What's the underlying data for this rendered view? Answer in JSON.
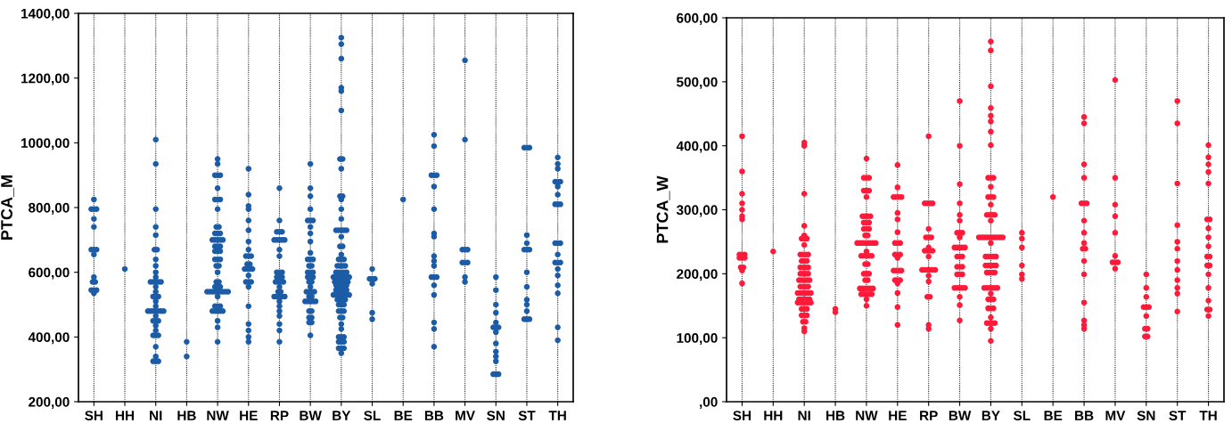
{
  "chart_data": [
    {
      "type": "scatter",
      "ylabel": "PTCA_M",
      "categories": [
        "SH",
        "HH",
        "NI",
        "HB",
        "NW",
        "HE",
        "RP",
        "BW",
        "BY",
        "SL",
        "BE",
        "BB",
        "MV",
        "SN",
        "ST",
        "TH"
      ],
      "ylim": [
        200,
        1400
      ],
      "yticks": [
        {
          "value": 200,
          "label": "200,00"
        },
        {
          "value": 400,
          "label": "400,00"
        },
        {
          "value": 600,
          "label": "600,00"
        },
        {
          "value": 800,
          "label": "800,00"
        },
        {
          "value": 1000,
          "label": "1000,00"
        },
        {
          "value": 1200,
          "label": "1200,00"
        },
        {
          "value": 1400,
          "label": "1400,00"
        }
      ],
      "grid": "x",
      "marker": "circle",
      "series": [
        {
          "color": "#1c5ca6",
          "x": [
            "SH",
            "SH",
            "SH",
            "SH",
            "SH",
            "SH",
            "SH",
            "SH",
            "SH",
            "SH",
            "SH",
            "SH",
            "SH",
            "SH",
            "SH",
            "SH",
            "SH",
            "HH",
            "NI",
            "NI",
            "NI",
            "NI",
            "NI",
            "NI",
            "NI",
            "NI",
            "NI",
            "NI",
            "NI",
            "NI",
            "NI",
            "NI",
            "NI",
            "NI",
            "NI",
            "NI",
            "NI",
            "NI",
            "NI",
            "NI",
            "NI",
            "NI",
            "NI",
            "NI",
            "NI",
            "NI",
            "NI",
            "NI",
            "NI",
            "NI",
            "NI",
            "NI",
            "NI",
            "NI",
            "NI",
            "NI",
            "NI",
            "NI",
            "NI",
            "NI",
            "NI",
            "NI",
            "HB",
            "HB",
            "NW",
            "NW",
            "NW",
            "NW",
            "NW",
            "NW",
            "NW",
            "NW",
            "NW",
            "NW",
            "NW",
            "NW",
            "NW",
            "NW",
            "NW",
            "NW",
            "NW",
            "NW",
            "NW",
            "NW",
            "NW",
            "NW",
            "NW",
            "NW",
            "NW",
            "NW",
            "NW",
            "NW",
            "NW",
            "NW",
            "NW",
            "NW",
            "NW",
            "NW",
            "NW",
            "NW",
            "NW",
            "NW",
            "NW",
            "NW",
            "NW",
            "NW",
            "NW",
            "NW",
            "NW",
            "NW",
            "NW",
            "NW",
            "NW",
            "NW",
            "NW",
            "NW",
            "NW",
            "NW",
            "NW",
            "NW",
            "NW",
            "NW",
            "HE",
            "HE",
            "HE",
            "HE",
            "HE",
            "HE",
            "HE",
            "HE",
            "HE",
            "HE",
            "HE",
            "HE",
            "HE",
            "HE",
            "HE",
            "HE",
            "HE",
            "HE",
            "HE",
            "HE",
            "HE",
            "HE",
            "HE",
            "HE",
            "HE",
            "HE",
            "HE",
            "RP",
            "RP",
            "RP",
            "RP",
            "RP",
            "RP",
            "RP",
            "RP",
            "RP",
            "RP",
            "RP",
            "RP",
            "RP",
            "RP",
            "RP",
            "RP",
            "RP",
            "RP",
            "RP",
            "RP",
            "RP",
            "RP",
            "RP",
            "RP",
            "RP",
            "RP",
            "RP",
            "RP",
            "RP",
            "RP",
            "RP",
            "RP",
            "RP",
            "RP",
            "RP",
            "RP",
            "RP",
            "BW",
            "BW",
            "BW",
            "BW",
            "BW",
            "BW",
            "BW",
            "BW",
            "BW",
            "BW",
            "BW",
            "BW",
            "BW",
            "BW",
            "BW",
            "BW",
            "BW",
            "BW",
            "BW",
            "BW",
            "BW",
            "BW",
            "BW",
            "BW",
            "BW",
            "BW",
            "BW",
            "BW",
            "BW",
            "BW",
            "BW",
            "BW",
            "BW",
            "BW",
            "BW",
            "BW",
            "BW",
            "BW",
            "BW",
            "BW",
            "BW",
            "BW",
            "BW",
            "BY",
            "BY",
            "BY",
            "BY",
            "BY",
            "BY",
            "BY",
            "BY",
            "BY",
            "BY",
            "BY",
            "BY",
            "BY",
            "BY",
            "BY",
            "BY",
            "BY",
            "BY",
            "BY",
            "BY",
            "BY",
            "BY",
            "BY",
            "BY",
            "BY",
            "BY",
            "BY",
            "BY",
            "BY",
            "BY",
            "BY",
            "BY",
            "BY",
            "BY",
            "BY",
            "BY",
            "BY",
            "BY",
            "BY",
            "BY",
            "BY",
            "BY",
            "BY",
            "BY",
            "BY",
            "BY",
            "BY",
            "BY",
            "BY",
            "BY",
            "BY",
            "BY",
            "BY",
            "BY",
            "BY",
            "BY",
            "BY",
            "BY",
            "BY",
            "BY",
            "BY",
            "BY",
            "BY",
            "BY",
            "BY",
            "BY",
            "BY",
            "BY",
            "BY",
            "BY",
            "BY",
            "BY",
            "BY",
            "BY",
            "BY",
            "BY",
            "BY",
            "BY",
            "BY",
            "BY",
            "BY",
            "BY",
            "BY",
            "BY",
            "BY",
            "BY",
            "BY",
            "BY",
            "BY",
            "SL",
            "SL",
            "SL",
            "SL",
            "SL",
            "SL",
            "SL",
            "BE",
            "BB",
            "BB",
            "BB",
            "BB",
            "BB",
            "BB",
            "BB",
            "BB",
            "BB",
            "BB",
            "BB",
            "BB",
            "BB",
            "BB",
            "BB",
            "BB",
            "BB",
            "BB",
            "BB",
            "BB",
            "MV",
            "MV",
            "MV",
            "MV",
            "MV",
            "MV",
            "MV",
            "MV",
            "MV",
            "MV",
            "SN",
            "SN",
            "SN",
            "SN",
            "SN",
            "SN",
            "SN",
            "SN",
            "SN",
            "SN",
            "SN",
            "SN",
            "SN",
            "SN",
            "SN",
            "SN",
            "ST",
            "ST",
            "ST",
            "ST",
            "ST",
            "ST",
            "ST",
            "ST",
            "ST",
            "ST",
            "ST",
            "ST",
            "ST",
            "ST",
            "ST",
            "ST",
            "TH",
            "TH",
            "TH",
            "TH",
            "TH",
            "TH",
            "TH",
            "TH",
            "TH",
            "TH",
            "TH",
            "TH",
            "TH",
            "TH",
            "TH",
            "TH",
            "TH",
            "TH",
            "TH",
            "TH",
            "TH",
            "TH",
            "TH",
            "TH"
          ],
          "values": [
            825,
            795,
            795,
            795,
            765,
            740,
            670,
            670,
            670,
            655,
            585,
            570,
            570,
            545,
            545,
            545,
            535,
            610,
            1010,
            935,
            795,
            740,
            715,
            670,
            670,
            640,
            620,
            600,
            585,
            570,
            570,
            570,
            570,
            570,
            555,
            540,
            525,
            525,
            525,
            510,
            495,
            480,
            480,
            480,
            480,
            480,
            480,
            480,
            465,
            450,
            450,
            450,
            435,
            420,
            405,
            405,
            405,
            370,
            340,
            325,
            325,
            325,
            385,
            340,
            950,
            935,
            900,
            900,
            900,
            860,
            825,
            825,
            825,
            795,
            740,
            740,
            720,
            720,
            720,
            700,
            700,
            700,
            700,
            700,
            680,
            680,
            680,
            665,
            665,
            665,
            640,
            640,
            640,
            620,
            620,
            600,
            570,
            570,
            555,
            555,
            555,
            540,
            540,
            540,
            540,
            540,
            540,
            540,
            540,
            540,
            525,
            495,
            495,
            495,
            480,
            480,
            480,
            480,
            480,
            450,
            430,
            385,
            920,
            840,
            805,
            795,
            760,
            730,
            695,
            670,
            650,
            650,
            650,
            625,
            625,
            610,
            610,
            610,
            610,
            590,
            570,
            570,
            570,
            555,
            495,
            440,
            420,
            400,
            385,
            860,
            760,
            725,
            725,
            725,
            700,
            700,
            700,
            700,
            700,
            670,
            650,
            600,
            600,
            600,
            585,
            585,
            585,
            570,
            570,
            570,
            570,
            555,
            540,
            540,
            525,
            525,
            525,
            525,
            525,
            510,
            495,
            480,
            465,
            440,
            420,
            385,
            935,
            860,
            835,
            795,
            760,
            760,
            760,
            740,
            720,
            695,
            660,
            640,
            640,
            640,
            620,
            620,
            600,
            600,
            600,
            585,
            585,
            585,
            570,
            570,
            555,
            540,
            540,
            540,
            540,
            525,
            525,
            510,
            510,
            510,
            510,
            510,
            480,
            480,
            460,
            460,
            445,
            445,
            405,
            1325,
            1305,
            1260,
            1170,
            1160,
            1100,
            950,
            950,
            920,
            835,
            835,
            825,
            795,
            765,
            730,
            730,
            730,
            730,
            730,
            710,
            680,
            680,
            655,
            640,
            640,
            640,
            620,
            620,
            620,
            620,
            600,
            600,
            600,
            600,
            600,
            585,
            585,
            585,
            585,
            585,
            585,
            585,
            570,
            570,
            570,
            570,
            570,
            570,
            560,
            560,
            560,
            560,
            560,
            545,
            545,
            545,
            545,
            545,
            530,
            530,
            530,
            530,
            530,
            530,
            530,
            515,
            515,
            515,
            515,
            500,
            500,
            500,
            480,
            480,
            480,
            460,
            460,
            440,
            425,
            400,
            400,
            400,
            385,
            385,
            385,
            365,
            365,
            365,
            350,
            610,
            580,
            580,
            580,
            565,
            475,
            455,
            825,
            1025,
            990,
            900,
            900,
            900,
            865,
            795,
            720,
            710,
            650,
            635,
            620,
            585,
            585,
            585,
            560,
            530,
            445,
            425,
            370,
            1255,
            1010,
            670,
            670,
            670,
            630,
            630,
            630,
            585,
            570,
            585,
            545,
            500,
            475,
            445,
            430,
            430,
            430,
            415,
            380,
            355,
            340,
            325,
            285,
            285,
            285,
            985,
            985,
            985,
            715,
            690,
            670,
            670,
            670,
            600,
            555,
            515,
            500,
            480,
            455,
            455,
            455,
            955,
            935,
            920,
            880,
            880,
            880,
            865,
            840,
            810,
            810,
            810,
            690,
            690,
            690,
            655,
            630,
            630,
            630,
            610,
            590,
            560,
            535,
            430,
            390
          ]
        }
      ]
    },
    {
      "type": "scatter",
      "ylabel": "PTCA_W",
      "categories": [
        "SH",
        "HH",
        "NI",
        "HB",
        "NW",
        "HE",
        "RP",
        "BW",
        "BY",
        "SL",
        "BE",
        "BB",
        "MV",
        "SN",
        "ST",
        "TH"
      ],
      "ylim": [
        0,
        600
      ],
      "yticks": [
        {
          "value": 0,
          "label": ",00"
        },
        {
          "value": 100,
          "label": "100,00"
        },
        {
          "value": 200,
          "label": "200,00"
        },
        {
          "value": 300,
          "label": "300,00"
        },
        {
          "value": 400,
          "label": "400,00"
        },
        {
          "value": 500,
          "label": "500,00"
        },
        {
          "value": 600,
          "label": "600,00"
        }
      ],
      "grid": "x",
      "marker": "circle",
      "series": [
        {
          "color": "#ff1a3a",
          "x": [
            "SH",
            "SH",
            "SH",
            "SH",
            "SH",
            "SH",
            "SH",
            "SH",
            "SH",
            "SH",
            "SH",
            "SH",
            "SH",
            "SH",
            "SH",
            "SH",
            "SH",
            "HH",
            "NI",
            "NI",
            "NI",
            "NI",
            "NI",
            "NI",
            "NI",
            "NI",
            "NI",
            "NI",
            "NI",
            "NI",
            "NI",
            "NI",
            "NI",
            "NI",
            "NI",
            "NI",
            "NI",
            "NI",
            "NI",
            "NI",
            "NI",
            "NI",
            "NI",
            "NI",
            "NI",
            "NI",
            "NI",
            "NI",
            "NI",
            "NI",
            "NI",
            "NI",
            "NI",
            "NI",
            "NI",
            "NI",
            "NI",
            "NI",
            "NI",
            "NI",
            "NI",
            "NI",
            "NI",
            "NI",
            "NI",
            "NI",
            "NI",
            "NI",
            "NI",
            "NI",
            "NI",
            "NI",
            "NI",
            "NI",
            "NI",
            "NI",
            "NI",
            "NI",
            "HB",
            "HB",
            "NW",
            "NW",
            "NW",
            "NW",
            "NW",
            "NW",
            "NW",
            "NW",
            "NW",
            "NW",
            "NW",
            "NW",
            "NW",
            "NW",
            "NW",
            "NW",
            "NW",
            "NW",
            "NW",
            "NW",
            "NW",
            "NW",
            "NW",
            "NW",
            "NW",
            "NW",
            "NW",
            "NW",
            "NW",
            "NW",
            "NW",
            "NW",
            "NW",
            "NW",
            "NW",
            "NW",
            "NW",
            "NW",
            "NW",
            "NW",
            "NW",
            "NW",
            "NW",
            "NW",
            "NW",
            "NW",
            "NW",
            "NW",
            "NW",
            "NW",
            "NW",
            "NW",
            "NW",
            "NW",
            "HE",
            "HE",
            "HE",
            "HE",
            "HE",
            "HE",
            "HE",
            "HE",
            "HE",
            "HE",
            "HE",
            "HE",
            "HE",
            "HE",
            "HE",
            "HE",
            "HE",
            "HE",
            "HE",
            "HE",
            "HE",
            "HE",
            "HE",
            "HE",
            "HE",
            "HE",
            "HE",
            "RP",
            "RP",
            "RP",
            "RP",
            "RP",
            "RP",
            "RP",
            "RP",
            "RP",
            "RP",
            "RP",
            "RP",
            "RP",
            "RP",
            "RP",
            "RP",
            "RP",
            "RP",
            "RP",
            "RP",
            "RP",
            "RP",
            "RP",
            "RP",
            "RP",
            "RP",
            "RP",
            "BW",
            "BW",
            "BW",
            "BW",
            "BW",
            "BW",
            "BW",
            "BW",
            "BW",
            "BW",
            "BW",
            "BW",
            "BW",
            "BW",
            "BW",
            "BW",
            "BW",
            "BW",
            "BW",
            "BW",
            "BW",
            "BW",
            "BW",
            "BW",
            "BW",
            "BW",
            "BW",
            "BW",
            "BW",
            "BW",
            "BW",
            "BW",
            "BY",
            "BY",
            "BY",
            "BY",
            "BY",
            "BY",
            "BY",
            "BY",
            "BY",
            "BY",
            "BY",
            "BY",
            "BY",
            "BY",
            "BY",
            "BY",
            "BY",
            "BY",
            "BY",
            "BY",
            "BY",
            "BY",
            "BY",
            "BY",
            "BY",
            "BY",
            "BY",
            "BY",
            "BY",
            "BY",
            "BY",
            "BY",
            "BY",
            "BY",
            "BY",
            "BY",
            "BY",
            "BY",
            "BY",
            "BY",
            "BY",
            "BY",
            "BY",
            "BY",
            "BY",
            "BY",
            "BY",
            "BY",
            "BY",
            "BY",
            "BY",
            "BY",
            "BY",
            "BY",
            "BY",
            "BY",
            "BY",
            "BY",
            "BY",
            "BY",
            "BY",
            "BY",
            "BY",
            "BY",
            "BY",
            "BY",
            "SL",
            "SL",
            "SL",
            "SL",
            "SL",
            "SL",
            "BE",
            "BB",
            "BB",
            "BB",
            "BB",
            "BB",
            "BB",
            "BB",
            "BB",
            "BB",
            "BB",
            "BB",
            "BB",
            "BB",
            "BB",
            "BB",
            "BB",
            "BB",
            "BB",
            "MV",
            "MV",
            "MV",
            "MV",
            "MV",
            "MV",
            "MV",
            "MV",
            "MV",
            "MV",
            "SN",
            "SN",
            "SN",
            "SN",
            "SN",
            "SN",
            "SN",
            "SN",
            "SN",
            "SN",
            "SN",
            "ST",
            "ST",
            "ST",
            "ST",
            "ST",
            "ST",
            "ST",
            "ST",
            "ST",
            "ST",
            "ST",
            "ST",
            "TH",
            "TH",
            "TH",
            "TH",
            "TH",
            "TH",
            "TH",
            "TH",
            "TH",
            "TH",
            "TH",
            "TH",
            "TH",
            "TH",
            "TH",
            "TH",
            "TH",
            "TH",
            "TH",
            "TH"
          ],
          "values": [
            415,
            360,
            325,
            310,
            300,
            290,
            285,
            230,
            230,
            230,
            225,
            225,
            225,
            210,
            210,
            205,
            185,
            235,
            405,
            400,
            325,
            275,
            260,
            255,
            255,
            255,
            245,
            230,
            230,
            230,
            230,
            220,
            220,
            220,
            210,
            210,
            210,
            210,
            200,
            200,
            200,
            200,
            190,
            190,
            190,
            190,
            190,
            180,
            180,
            180,
            180,
            170,
            170,
            170,
            170,
            170,
            170,
            160,
            160,
            160,
            160,
            160,
            155,
            155,
            155,
            155,
            155,
            155,
            145,
            145,
            145,
            135,
            135,
            135,
            125,
            125,
            115,
            110,
            145,
            140,
            380,
            350,
            350,
            350,
            330,
            330,
            330,
            320,
            290,
            290,
            290,
            290,
            280,
            280,
            280,
            270,
            270,
            270,
            260,
            260,
            248,
            248,
            248,
            248,
            248,
            248,
            248,
            248,
            235,
            228,
            228,
            228,
            228,
            228,
            215,
            215,
            200,
            200,
            200,
            190,
            190,
            177,
            177,
            177,
            177,
            177,
            177,
            168,
            168,
            168,
            168,
            168,
            160,
            150,
            370,
            335,
            320,
            320,
            320,
            320,
            295,
            285,
            265,
            248,
            248,
            248,
            230,
            230,
            230,
            225,
            205,
            205,
            205,
            205,
            190,
            190,
            190,
            185,
            170,
            148,
            120,
            415,
            310,
            310,
            310,
            310,
            270,
            257,
            257,
            257,
            241,
            236,
            236,
            236,
            236,
            227,
            206,
            206,
            206,
            206,
            206,
            206,
            197,
            188,
            164,
            164,
            120,
            114,
            470,
            400,
            340,
            310,
            292,
            283,
            264,
            264,
            264,
            257,
            241,
            241,
            241,
            241,
            241,
            227,
            227,
            227,
            211,
            211,
            211,
            199,
            199,
            199,
            178,
            178,
            178,
            178,
            178,
            164,
            151,
            127,
            563,
            549,
            493,
            459,
            447,
            438,
            422,
            401,
            350,
            350,
            350,
            336,
            320,
            320,
            320,
            308,
            292,
            292,
            292,
            292,
            283,
            257,
            257,
            257,
            257,
            257,
            257,
            257,
            257,
            257,
            257,
            248,
            227,
            227,
            227,
            227,
            227,
            213,
            213,
            213,
            213,
            213,
            202,
            202,
            202,
            202,
            178,
            178,
            178,
            178,
            178,
            178,
            169,
            160,
            160,
            160,
            146,
            146,
            146,
            132,
            123,
            123,
            123,
            123,
            114,
            95,
            264,
            255,
            241,
            213,
            199,
            192,
            320,
            445,
            435,
            371,
            350,
            310,
            310,
            310,
            283,
            264,
            248,
            239,
            239,
            220,
            199,
            155,
            127,
            120,
            114,
            503,
            350,
            308,
            290,
            264,
            228,
            218,
            218,
            218,
            208,
            199,
            178,
            164,
            148,
            148,
            148,
            134,
            114,
            114,
            102,
            102,
            470,
            435,
            341,
            276,
            250,
            239,
            220,
            206,
            190,
            178,
            169,
            141,
            401,
            382,
            371,
            359,
            341,
            285,
            285,
            271,
            257,
            243,
            227,
            227,
            213,
            213,
            199,
            178,
            158,
            144,
            144,
            134
          ]
        }
      ]
    }
  ]
}
